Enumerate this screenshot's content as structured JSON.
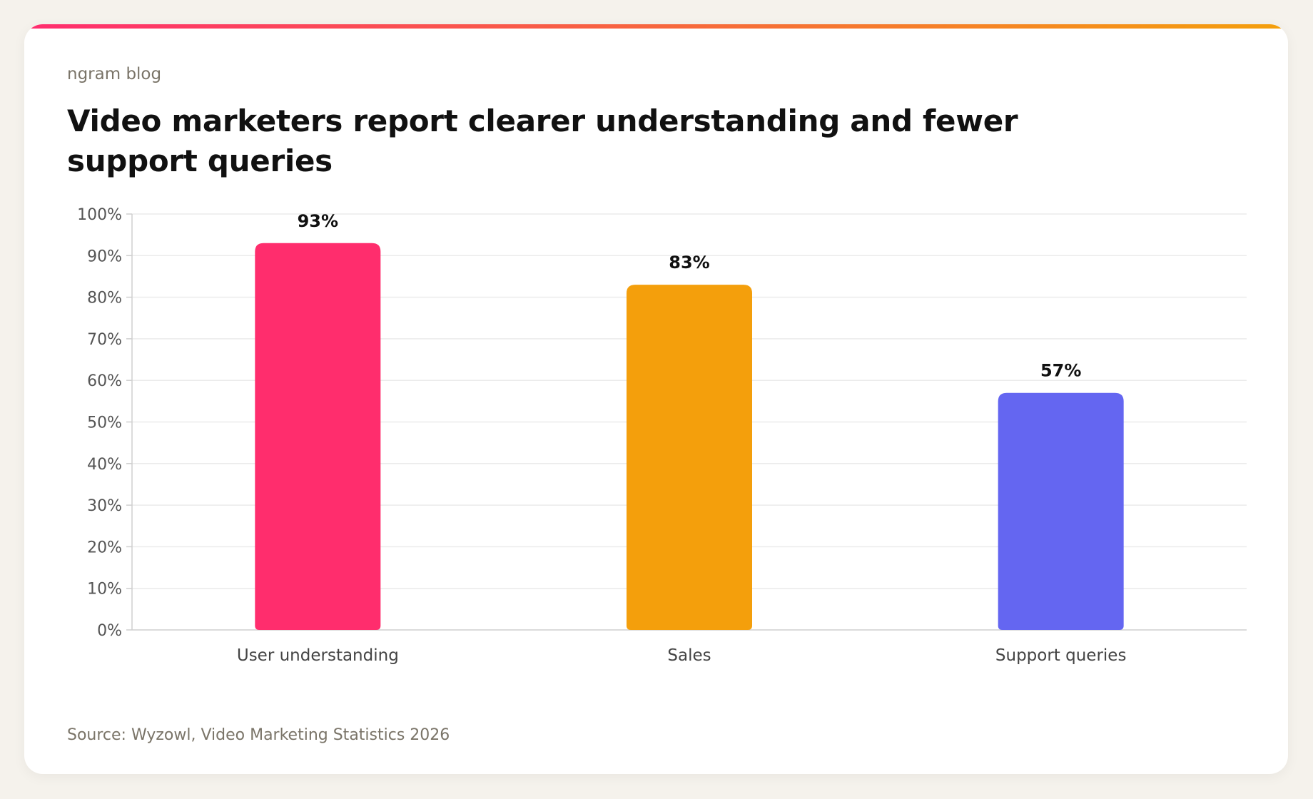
{
  "brand": "ngram blog",
  "title": "Video marketers report clearer understanding and fewer support queries",
  "source": "Source: Wyzowl, Video Marketing Statistics 2026",
  "colors": {
    "accent_start": "#ff2d6f",
    "accent_mid": "#f7663e",
    "accent_end": "#f4a00c",
    "grid": "#ebebeb",
    "axis": "#cfcfcf"
  },
  "chart_data": {
    "type": "bar",
    "categories": [
      "User understanding",
      "Sales",
      "Support queries"
    ],
    "values": [
      93,
      83,
      57
    ],
    "value_labels": [
      "93%",
      "83%",
      "57%"
    ],
    "bar_colors": [
      "#ff2d6d",
      "#f49f0c",
      "#6466f1"
    ],
    "ylim": [
      0,
      100
    ],
    "yticks": [
      0,
      10,
      20,
      30,
      40,
      50,
      60,
      70,
      80,
      90,
      100
    ],
    "ytick_labels": [
      "0%",
      "10%",
      "20%",
      "30%",
      "40%",
      "50%",
      "60%",
      "70%",
      "80%",
      "90%",
      "100%"
    ],
    "grid": true,
    "legend": "none"
  }
}
